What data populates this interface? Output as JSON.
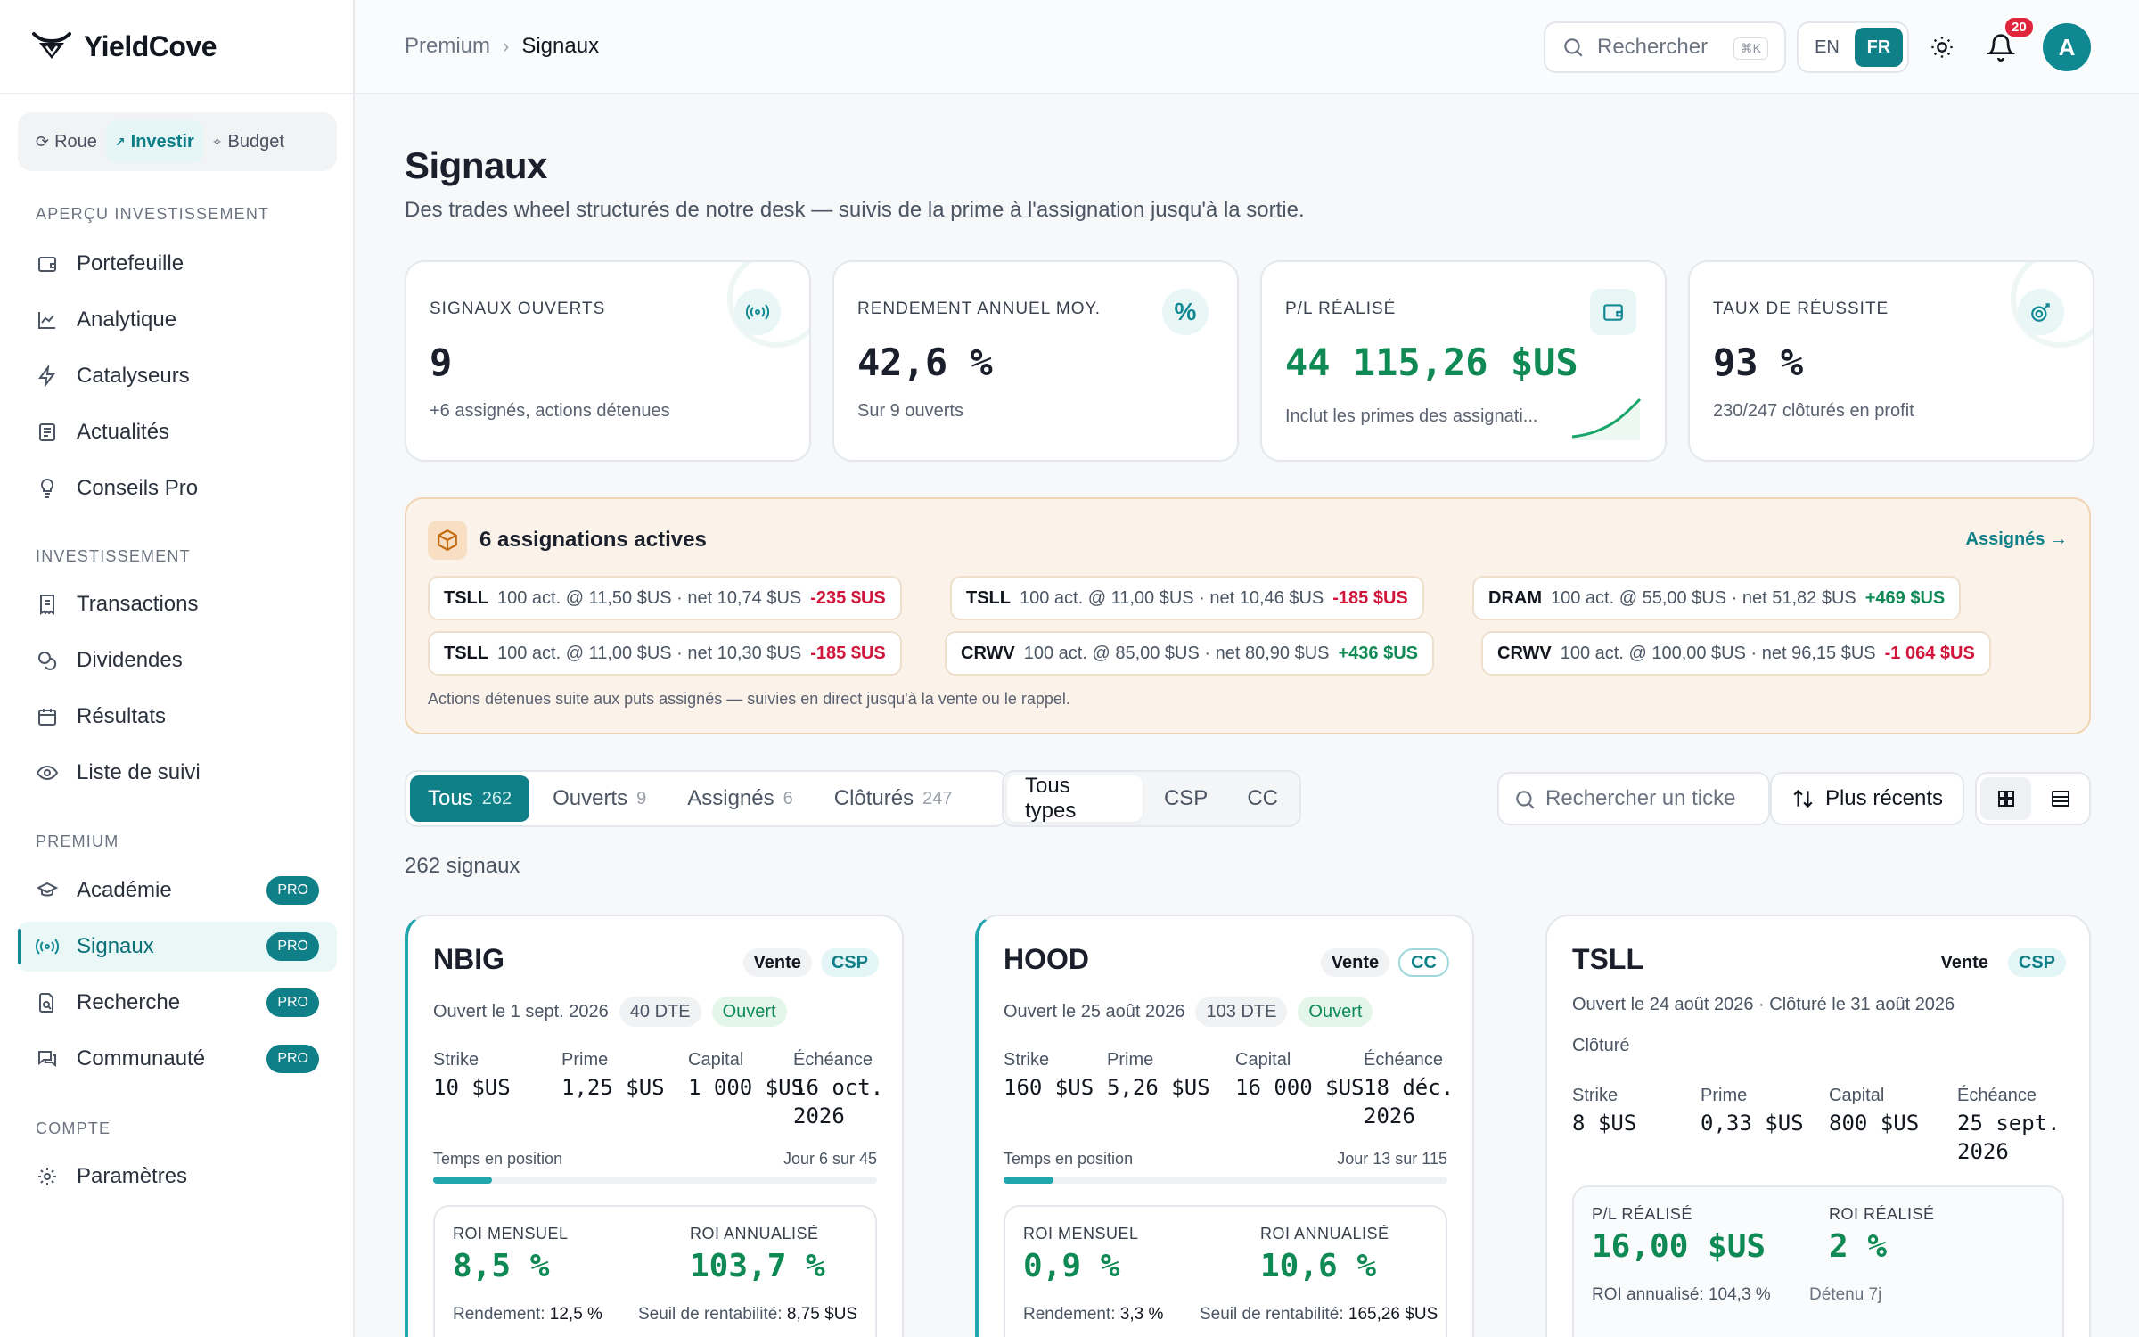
{
  "brand": {
    "name": "YieldCove"
  },
  "switcher": [
    {
      "label": "Roue",
      "icon": "refresh-icon",
      "active": false
    },
    {
      "label": "Investir",
      "icon": "trend-icon",
      "active": true
    },
    {
      "label": "Budget",
      "icon": "spark-icon",
      "active": false
    }
  ],
  "sidebar": {
    "sections": [
      "APERÇU INVESTISSEMENT",
      "INVESTISSEMENT",
      "PREMIUM",
      "COMPTE"
    ],
    "items": [
      {
        "label": "Portefeuille",
        "icon": "wallet-icon"
      },
      {
        "label": "Analytique",
        "icon": "line-chart-icon"
      },
      {
        "label": "Catalyseurs",
        "icon": "bolt-icon"
      },
      {
        "label": "Actualités",
        "icon": "newspaper-icon"
      },
      {
        "label": "Conseils Pro",
        "icon": "lightbulb-icon"
      },
      {
        "label": "Transactions",
        "icon": "receipt-icon"
      },
      {
        "label": "Dividendes",
        "icon": "coins-icon"
      },
      {
        "label": "Résultats",
        "icon": "calendar-icon"
      },
      {
        "label": "Liste de suivi",
        "icon": "eye-icon"
      },
      {
        "label": "Académie",
        "icon": "graduation-icon",
        "badge": "PRO"
      },
      {
        "label": "Signaux",
        "icon": "signal-icon",
        "badge": "PRO",
        "active": true
      },
      {
        "label": "Recherche",
        "icon": "file-search-icon",
        "badge": "PRO"
      },
      {
        "label": "Communauté",
        "icon": "chat-icon",
        "badge": "PRO"
      },
      {
        "label": "Paramètres",
        "icon": "gear-icon"
      }
    ]
  },
  "header": {
    "crumb_parent": "Premium",
    "crumb_current": "Signaux",
    "search_placeholder": "Rechercher",
    "search_kbd": "⌘K",
    "lang_en": "EN",
    "lang_fr": "FR",
    "notif_count": "20",
    "avatar_initial": "A"
  },
  "page": {
    "title": "Signaux",
    "subtitle": "Des trades wheel structurés de notre desk — suivis de la prime à l'assignation jusqu'à la sortie."
  },
  "stats": [
    {
      "label": "SIGNAUX OUVERTS",
      "value": "9",
      "sub": "+6 assignés, actions détenues",
      "icon": "signal-icon"
    },
    {
      "label": "RENDEMENT ANNUEL MOY.",
      "value": "42,6 %",
      "sub": "Sur 9 ouverts",
      "icon": "percent-icon"
    },
    {
      "label": "P/L RÉALISÉ",
      "value": "44 115,26 $US",
      "sub": "Inclut les primes des assignati...",
      "icon": "wallet-icon"
    },
    {
      "label": "TAUX DE RÉUSSITE",
      "value": "93 %",
      "sub": "230/247 clôturés en profit",
      "icon": "target-icon"
    }
  ],
  "assignations": {
    "title": "6 assignations actives",
    "link": "Assignés →",
    "footer": "Actions détenues suite aux puts assignés — suivies en direct jusqu'à la vente ou le rappel.",
    "chips": [
      {
        "ticker": "TSLL",
        "detail": "100 act. @ 11,50 $US",
        "net": "· net 10,74 $US",
        "pl": "-235 $US",
        "pos": false
      },
      {
        "ticker": "TSLL",
        "detail": "100 act. @ 11,00 $US",
        "net": "· net 10,46 $US",
        "pl": "-185 $US",
        "pos": false
      },
      {
        "ticker": "DRAM",
        "detail": "100 act. @ 55,00 $US",
        "net": "· net 51,82 $US",
        "pl": "+469 $US",
        "pos": true
      },
      {
        "ticker": "TSLL",
        "detail": "100 act. @ 11,00 $US",
        "net": "· net 10,30 $US",
        "pl": "-185 $US",
        "pos": false
      },
      {
        "ticker": "CRWV",
        "detail": "100 act. @ 85,00 $US",
        "net": "· net 80,90 $US",
        "pl": "+436 $US",
        "pos": true
      },
      {
        "ticker": "CRWV",
        "detail": "100 act. @ 100,00 $US",
        "net": "· net 96,15 $US",
        "pl": "-1 064 $US",
        "pos": false
      }
    ]
  },
  "filters": {
    "tabs": [
      {
        "label": "Tous",
        "count": "262",
        "active": true
      },
      {
        "label": "Ouverts",
        "count": "9"
      },
      {
        "label": "Assignés",
        "count": "6"
      },
      {
        "label": "Clôturés",
        "count": "247"
      }
    ],
    "types": [
      "Tous types",
      "CSP",
      "CC"
    ],
    "ticker_placeholder": "Rechercher un ticke",
    "sort_label": "Plus récents",
    "result_count": "262 signaux"
  },
  "cards": [
    {
      "ticker": "NBIG",
      "side": "Vente",
      "type": "CSP",
      "opened": "Ouvert le 1 sept. 2026",
      "dte": "40 DTE",
      "status": "Ouvert",
      "labels": [
        "Strike",
        "Prime",
        "Capital",
        "Échéance"
      ],
      "values": [
        "10 $US",
        "1,25 $US",
        "1 000 $US",
        "16 oct. 2026"
      ],
      "time_label": "Temps en position",
      "time_value": "Jour 6 sur 45",
      "progress": 0.133,
      "roi_m_label": "ROI MENSUEL",
      "roi_m": "8,5 %",
      "roi_a_label": "ROI ANNUALISÉ",
      "roi_a": "103,7 %",
      "yield_label": "Rendement:",
      "yield": "12,5 %",
      "be_label": "Seuil de rentabilité:",
      "be": "8,75 $US"
    },
    {
      "ticker": "HOOD",
      "side": "Vente",
      "type": "CC",
      "opened": "Ouvert le 25 août 2026",
      "dte": "103 DTE",
      "status": "Ouvert",
      "labels": [
        "Strike",
        "Prime",
        "Capital",
        "Échéance"
      ],
      "values": [
        "160 $US",
        "5,26 $US",
        "16 000 $US",
        "18 déc. 2026"
      ],
      "time_label": "Temps en position",
      "time_value": "Jour 13 sur 115",
      "progress": 0.113,
      "roi_m_label": "ROI MENSUEL",
      "roi_m": "0,9 %",
      "roi_a_label": "ROI ANNUALISÉ",
      "roi_a": "10,6 %",
      "yield_label": "Rendement:",
      "yield": "3,3 %",
      "be_label": "Seuil de rentabilité:",
      "be": "165,26 $US"
    },
    {
      "ticker": "TSLL",
      "side": "Vente",
      "type": "CSP",
      "opened": "Ouvert le 24 août 2026 · Clôturé le 31 août 2026",
      "status": "Clôturé",
      "labels": [
        "Strike",
        "Prime",
        "Capital",
        "Échéance"
      ],
      "values": [
        "8 $US",
        "0,33 $US",
        "800 $US",
        "25 sept. 2026"
      ],
      "pl_label": "P/L RÉALISÉ",
      "pl": "16,00 $US",
      "roi_label": "ROI RÉALISÉ",
      "roi": "2 %",
      "annual": "ROI annualisé: 104,3 %",
      "held": "Détenu 7j"
    }
  ]
}
